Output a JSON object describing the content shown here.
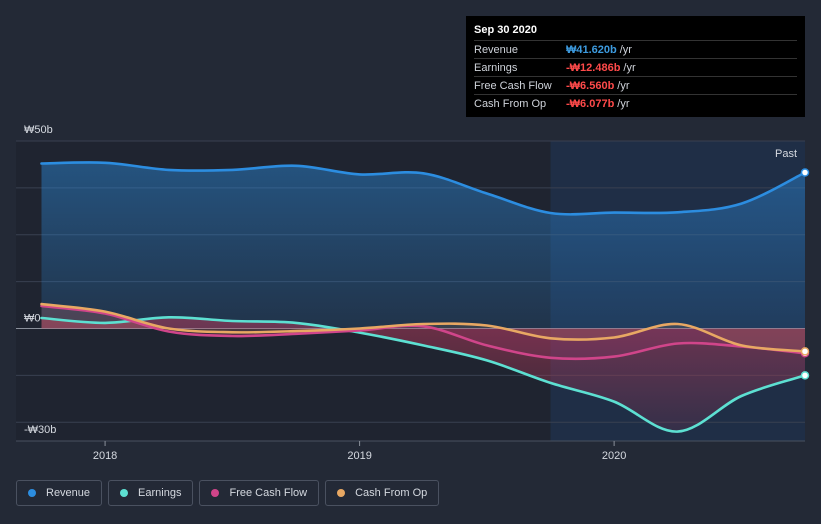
{
  "tooltip": {
    "date": "Sep 30 2020",
    "rows": [
      {
        "label": "Revenue",
        "value": "₩41.620b",
        "unit": "/yr",
        "color": "#3d9bdf"
      },
      {
        "label": "Earnings",
        "value": "-₩12.486b",
        "unit": "/yr",
        "color": "#ff4a4a"
      },
      {
        "label": "Free Cash Flow",
        "value": "-₩6.560b",
        "unit": "/yr",
        "color": "#ff4a4a"
      },
      {
        "label": "Cash From Op",
        "value": "-₩6.077b",
        "unit": "/yr",
        "color": "#ff4a4a"
      }
    ]
  },
  "past_label": "Past",
  "legend": [
    {
      "label": "Revenue",
      "color": "#2c8de0"
    },
    {
      "label": "Earnings",
      "color": "#5de0d2"
    },
    {
      "label": "Free Cash Flow",
      "color": "#d0458a"
    },
    {
      "label": "Cash From Op",
      "color": "#e8a863"
    }
  ],
  "chart_data": {
    "type": "line",
    "title": "",
    "xlabel": "",
    "ylabel": "",
    "ylim": [
      -30,
      50
    ],
    "y_ticks": [
      {
        "value": 50,
        "label": "₩50b"
      },
      {
        "value": 0,
        "label": "₩0"
      },
      {
        "value": -30,
        "label": "-₩30b"
      }
    ],
    "xlim": [
      2017.65,
      2020.75
    ],
    "x_ticks": [
      {
        "value": 2018.0,
        "label": "2018"
      },
      {
        "value": 2019.0,
        "label": "2019"
      },
      {
        "value": 2020.0,
        "label": "2020"
      }
    ],
    "past_start": 2019.75,
    "series": [
      {
        "name": "Revenue",
        "color": "#2c8de0",
        "x": [
          2017.75,
          2018.0,
          2018.25,
          2018.5,
          2018.75,
          2019.0,
          2019.25,
          2019.5,
          2019.75,
          2020.0,
          2020.25,
          2020.5,
          2020.75
        ],
        "y": [
          44.0,
          44.2,
          42.3,
          42.3,
          43.4,
          41.1,
          41.4,
          36.0,
          30.8,
          30.9,
          31.0,
          33.3,
          41.6
        ]
      },
      {
        "name": "Earnings",
        "color": "#5de0d2",
        "x": [
          2017.75,
          2018.0,
          2018.25,
          2018.5,
          2018.75,
          2019.0,
          2019.25,
          2019.5,
          2019.75,
          2020.0,
          2020.25,
          2020.5,
          2020.75
        ],
        "y": [
          2.8,
          1.5,
          3.0,
          2.0,
          1.5,
          -1.1,
          -4.5,
          -8.5,
          -14.5,
          -19.5,
          -27.5,
          -18.0,
          -12.5
        ]
      },
      {
        "name": "Free Cash Flow",
        "color": "#d0458a",
        "x": [
          2017.75,
          2018.0,
          2018.25,
          2018.5,
          2018.75,
          2019.0,
          2019.25,
          2019.5,
          2019.75,
          2020.0,
          2020.25,
          2020.5,
          2020.75
        ],
        "y": [
          6.0,
          4.0,
          -0.8,
          -2.0,
          -1.4,
          -0.5,
          0.6,
          -4.5,
          -7.8,
          -7.5,
          -4.0,
          -4.8,
          -6.6
        ]
      },
      {
        "name": "Cash From Op",
        "color": "#e8a863",
        "x": [
          2017.75,
          2018.0,
          2018.25,
          2018.5,
          2018.75,
          2019.0,
          2019.25,
          2019.5,
          2019.75,
          2020.0,
          2020.25,
          2020.5,
          2020.75
        ],
        "y": [
          6.5,
          4.5,
          0.0,
          -1.0,
          -0.7,
          0.0,
          1.2,
          0.8,
          -2.6,
          -2.4,
          1.2,
          -4.5,
          -6.1
        ]
      }
    ]
  }
}
